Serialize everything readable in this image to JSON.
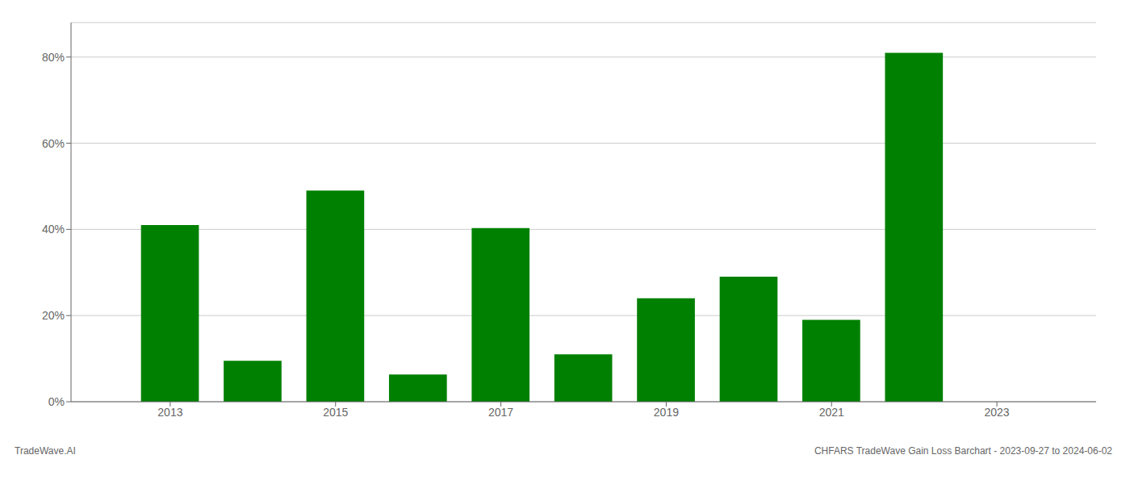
{
  "chart_data": {
    "type": "bar",
    "x": [
      2013,
      2014,
      2015,
      2016,
      2017,
      2018,
      2019,
      2020,
      2021,
      2022
    ],
    "values": [
      0.41,
      0.095,
      0.49,
      0.063,
      0.403,
      0.11,
      0.24,
      0.29,
      0.19,
      0.81
    ],
    "color": "#008000",
    "xlim": [
      2011.8,
      2024.2
    ],
    "xticks": [
      2013,
      2015,
      2017,
      2019,
      2021,
      2023
    ],
    "ylim": [
      0,
      0.88
    ],
    "yticks": [
      {
        "value": 0.0,
        "label": "0%"
      },
      {
        "value": 0.2,
        "label": "20%"
      },
      {
        "value": 0.4,
        "label": "40%"
      },
      {
        "value": 0.6,
        "label": "60%"
      },
      {
        "value": 0.8,
        "label": "80%"
      }
    ],
    "grid": true,
    "annotations": [
      "TradeWave.AI",
      "CHFARS TradeWave Gain Loss Barchart - 2023-09-27 to 2024-06-02"
    ]
  }
}
